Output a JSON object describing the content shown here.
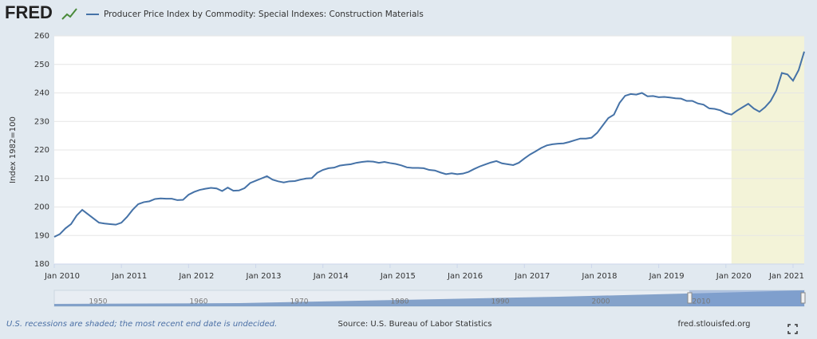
{
  "logo": "FRED",
  "chart_data": {
    "type": "line",
    "ylabel": "Index 1982=100",
    "x": [
      "2010-01",
      "2010-02",
      "2010-03",
      "2010-04",
      "2010-05",
      "2010-06",
      "2010-07",
      "2010-08",
      "2010-09",
      "2010-10",
      "2010-11",
      "2010-12",
      "2011-01",
      "2011-02",
      "2011-03",
      "2011-04",
      "2011-05",
      "2011-06",
      "2011-07",
      "2011-08",
      "2011-09",
      "2011-10",
      "2011-11",
      "2011-12",
      "2012-01",
      "2012-02",
      "2012-03",
      "2012-04",
      "2012-05",
      "2012-06",
      "2012-07",
      "2012-08",
      "2012-09",
      "2012-10",
      "2012-11",
      "2012-12",
      "2013-01",
      "2013-02",
      "2013-03",
      "2013-04",
      "2013-05",
      "2013-06",
      "2013-07",
      "2013-08",
      "2013-09",
      "2013-10",
      "2013-11",
      "2013-12",
      "2014-01",
      "2014-02",
      "2014-03",
      "2014-04",
      "2014-05",
      "2014-06",
      "2014-07",
      "2014-08",
      "2014-09",
      "2014-10",
      "2014-11",
      "2014-12",
      "2015-01",
      "2015-02",
      "2015-03",
      "2015-04",
      "2015-05",
      "2015-06",
      "2015-07",
      "2015-08",
      "2015-09",
      "2015-10",
      "2015-11",
      "2015-12",
      "2016-01",
      "2016-02",
      "2016-03",
      "2016-04",
      "2016-05",
      "2016-06",
      "2016-07",
      "2016-08",
      "2016-09",
      "2016-10",
      "2016-11",
      "2016-12",
      "2017-01",
      "2017-02",
      "2017-03",
      "2017-04",
      "2017-05",
      "2017-06",
      "2017-07",
      "2017-08",
      "2017-09",
      "2017-10",
      "2017-11",
      "2017-12",
      "2018-01",
      "2018-02",
      "2018-03",
      "2018-04",
      "2018-05",
      "2018-06",
      "2018-07",
      "2018-08",
      "2018-09",
      "2018-10",
      "2018-11",
      "2018-12",
      "2019-01",
      "2019-02",
      "2019-03",
      "2019-04",
      "2019-05",
      "2019-06",
      "2019-07",
      "2019-08",
      "2019-09",
      "2019-10",
      "2019-11",
      "2019-12",
      "2020-01",
      "2020-02",
      "2020-03",
      "2020-04",
      "2020-05",
      "2020-06",
      "2020-07",
      "2020-08",
      "2020-09",
      "2020-10",
      "2020-11",
      "2020-12",
      "2021-01",
      "2021-02",
      "2021-03"
    ],
    "series": [
      {
        "name": "Producer Price Index by Commodity: Special Indexes: Construction Materials",
        "color": "#4572a7",
        "values": [
          189.5,
          190.5,
          192.5,
          194,
          197,
          199,
          197.5,
          196,
          194.5,
          194.2,
          194,
          193.8,
          194.5,
          196.5,
          199,
          201,
          201.7,
          202,
          202.8,
          203,
          202.9,
          202.9,
          202.4,
          202.5,
          204.3,
          205.3,
          206,
          206.4,
          206.7,
          206.5,
          205.6,
          206.8,
          205.7,
          205.8,
          206.6,
          208.4,
          209.2,
          210,
          210.8,
          209.6,
          209,
          208.6,
          209,
          209.1,
          209.6,
          210,
          210.1,
          212,
          213,
          213.6,
          213.8,
          214.5,
          214.8,
          215,
          215.5,
          215.8,
          216,
          215.9,
          215.5,
          215.8,
          215.4,
          215.1,
          214.6,
          213.9,
          213.7,
          213.7,
          213.6,
          213,
          212.8,
          212.1,
          211.5,
          211.8,
          211.5,
          211.7,
          212.3,
          213.3,
          214.2,
          214.9,
          215.6,
          216.1,
          215.3,
          215,
          214.7,
          215.5,
          217,
          218.4,
          219.5,
          220.7,
          221.6,
          222,
          222.2,
          222.3,
          222.8,
          223.4,
          224,
          224,
          224.3,
          226,
          228.6,
          231.2,
          232.4,
          236.5,
          239,
          239.6,
          239.4,
          240,
          238.8,
          238.9,
          238.5,
          238.6,
          238.4,
          238.1,
          238,
          237.2,
          237.2,
          236.3,
          235.9,
          234.6,
          234.4,
          233.9,
          232.9,
          232.4,
          233.8,
          235,
          236.2,
          234.5,
          233.4,
          235,
          237.2,
          240.8,
          247,
          246.5,
          244.3,
          248,
          254.5
        ]
      }
    ],
    "xlim": [
      "2010-01",
      "2021-03"
    ],
    "xticks": [
      {
        "value": "2010-01",
        "label": "Jan 2010"
      },
      {
        "value": "2011-01",
        "label": "Jan 2011"
      },
      {
        "value": "2012-01",
        "label": "Jan 2012"
      },
      {
        "value": "2013-01",
        "label": "Jan 2013"
      },
      {
        "value": "2014-01",
        "label": "Jan 2014"
      },
      {
        "value": "2015-01",
        "label": "Jan 2015"
      },
      {
        "value": "2016-01",
        "label": "Jan 2016"
      },
      {
        "value": "2017-01",
        "label": "Jan 2017"
      },
      {
        "value": "2018-01",
        "label": "Jan 2018"
      },
      {
        "value": "2019-01",
        "label": "Jan 2019"
      },
      {
        "value": "2020-01",
        "label": "Jan 2020"
      },
      {
        "value": "2021-01",
        "label": "Jan 2021"
      }
    ],
    "ylim": [
      180,
      260
    ],
    "yticks": [
      180,
      190,
      200,
      210,
      220,
      230,
      240,
      250,
      260
    ],
    "grid": true,
    "recessions": [
      [
        "2020-02",
        "2021-03"
      ]
    ],
    "recession_color": "#f3f3d8"
  },
  "navigator": {
    "labels": [
      1950,
      1960,
      1970,
      1980,
      1990,
      2000,
      2010
    ]
  },
  "footer": {
    "note": "U.S. recessions are shaded; the most recent end date is undecided.",
    "source": "Source: U.S. Bureau of Labor Statistics",
    "site": "fred.stlouisfed.org"
  }
}
